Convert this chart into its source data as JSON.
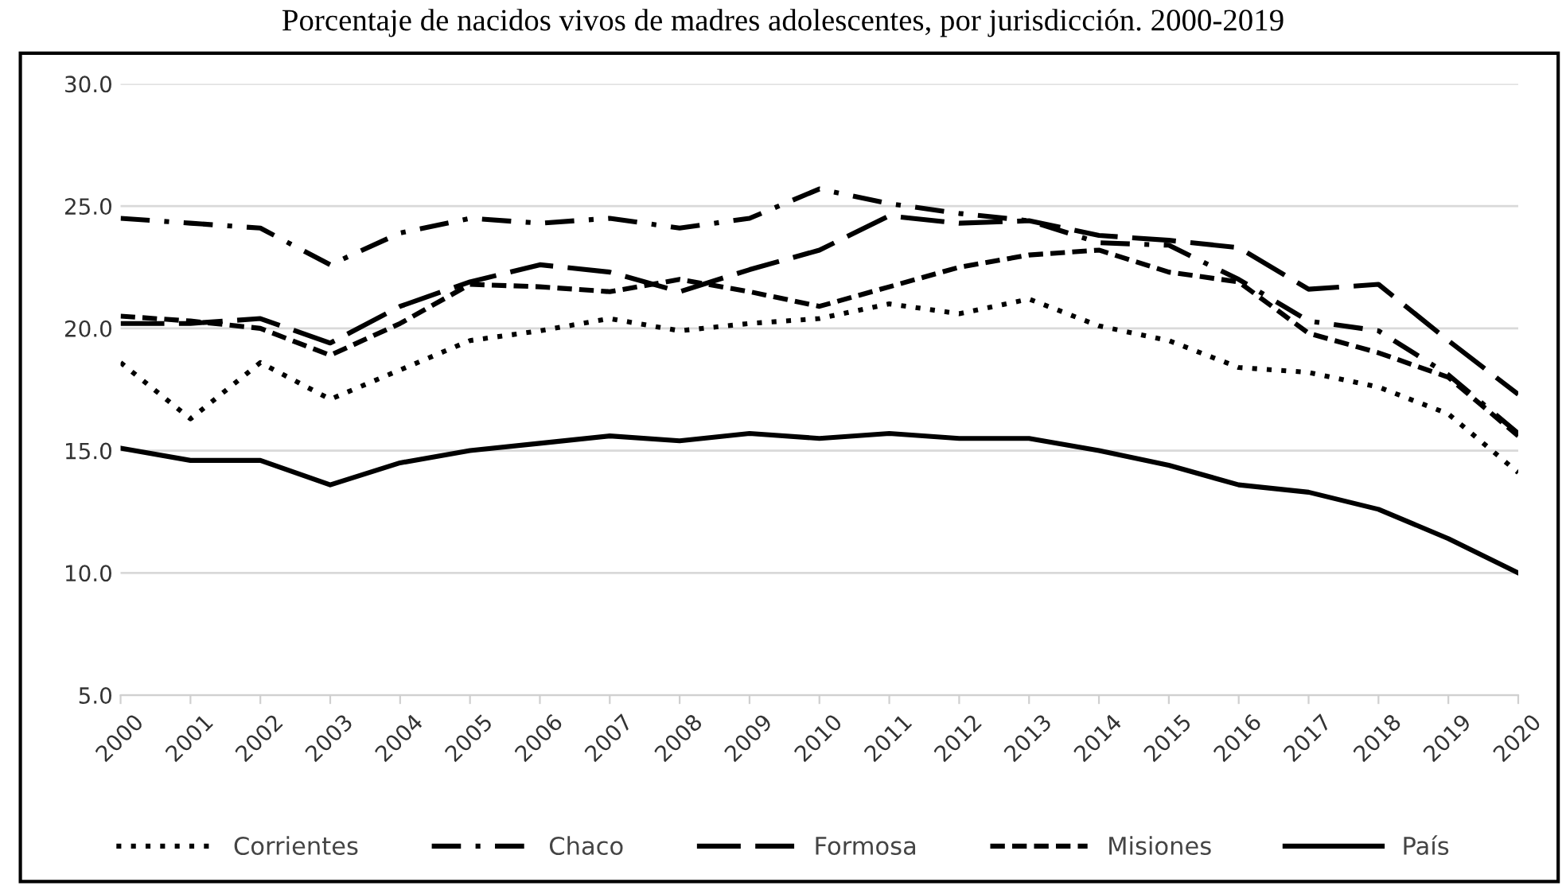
{
  "chart_data": {
    "type": "line",
    "title": "Porcentaje de nacidos vivos de madres adolescentes, por jurisdicción. 2000-2019",
    "categories": [
      "2000",
      "2001",
      "2002",
      "2003",
      "2004",
      "2005",
      "2006",
      "2007",
      "2008",
      "2009",
      "2010",
      "2011",
      "2012",
      "2013",
      "2014",
      "2015",
      "2016",
      "2017",
      "2018",
      "2019",
      "2020"
    ],
    "series": [
      {
        "name": "Corrientes",
        "color": "#000000",
        "line_style": "dotted",
        "values": [
          18.6,
          16.3,
          18.6,
          17.1,
          18.3,
          19.5,
          19.9,
          20.4,
          19.9,
          20.2,
          20.4,
          21.0,
          20.6,
          21.2,
          20.1,
          19.5,
          18.4,
          18.2,
          17.6,
          16.5,
          14.1
        ]
      },
      {
        "name": "Chaco",
        "color": "#000000",
        "line_style": "dashdot",
        "values": [
          24.5,
          24.3,
          24.1,
          22.6,
          23.9,
          24.5,
          24.3,
          24.5,
          24.1,
          24.5,
          25.7,
          25.1,
          24.7,
          24.4,
          23.5,
          23.4,
          22.0,
          20.3,
          19.9,
          18.1,
          15.7
        ]
      },
      {
        "name": "Formosa",
        "color": "#000000",
        "line_style": "longdash",
        "values": [
          20.2,
          20.2,
          20.4,
          19.4,
          20.9,
          21.9,
          22.6,
          22.3,
          21.5,
          22.4,
          23.2,
          24.6,
          24.3,
          24.4,
          23.8,
          23.6,
          23.3,
          21.6,
          21.8,
          19.5,
          17.3
        ]
      },
      {
        "name": "Misiones",
        "color": "#000000",
        "line_style": "dashed",
        "values": [
          20.5,
          20.3,
          20.0,
          18.9,
          20.2,
          21.8,
          21.7,
          21.5,
          22.0,
          21.5,
          20.9,
          21.7,
          22.5,
          23.0,
          23.2,
          22.3,
          21.9,
          19.8,
          19.0,
          18.0,
          15.6
        ]
      },
      {
        "name": "País",
        "color": "#000000",
        "line_style": "solid",
        "values": [
          15.1,
          14.6,
          14.6,
          13.6,
          14.5,
          15.0,
          15.3,
          15.6,
          15.4,
          15.7,
          15.5,
          15.7,
          15.5,
          15.5,
          15.0,
          14.4,
          13.6,
          13.3,
          12.6,
          11.4,
          10.0
        ]
      }
    ],
    "ylim": [
      5,
      30
    ],
    "yticks": [
      {
        "value": 5,
        "label": "5.0"
      },
      {
        "value": 10,
        "label": "10.0"
      },
      {
        "value": 15,
        "label": "15.0"
      },
      {
        "value": 20,
        "label": "20.0"
      },
      {
        "value": 25,
        "label": "25.0"
      },
      {
        "value": 30,
        "label": "30.0"
      }
    ],
    "grid": "y",
    "legend": "bottom",
    "marker": "none"
  }
}
